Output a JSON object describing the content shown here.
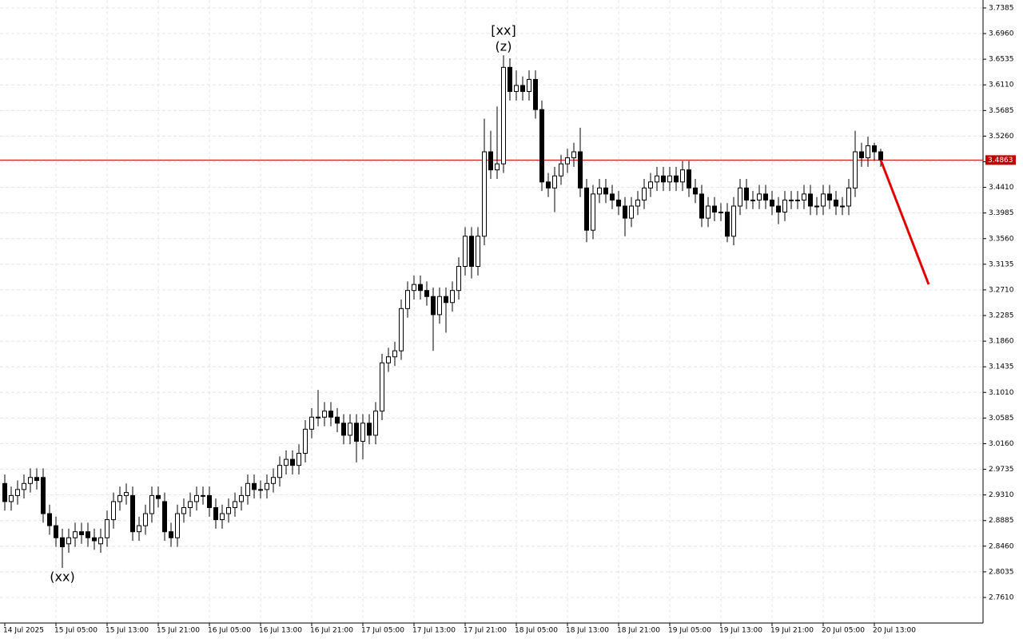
{
  "chart_data": {
    "type": "candlestick",
    "categories": [
      "14 Jul 2025",
      null,
      null,
      null,
      null,
      null,
      null,
      null,
      "15 Jul 05:00",
      null,
      null,
      null,
      null,
      null,
      null,
      null,
      "15 Jul 13:00",
      null,
      null,
      null,
      null,
      null,
      null,
      null,
      "15 Jul 21:00",
      null,
      null,
      null,
      null,
      null,
      null,
      null,
      "16 Jul 05:00",
      null,
      null,
      null,
      null,
      null,
      null,
      null,
      "16 Jul 13:00",
      null,
      null,
      null,
      null,
      null,
      null,
      null,
      "16 Jul 21:00",
      null,
      null,
      null,
      null,
      null,
      null,
      null,
      "17 Jul 05:00",
      null,
      null,
      null,
      null,
      null,
      null,
      null,
      "17 Jul 13:00",
      null,
      null,
      null,
      null,
      null,
      null,
      null,
      "17 Jul 21:00",
      null,
      null,
      null,
      null,
      null,
      null,
      null,
      "18 Jul 05:00",
      null,
      null,
      null,
      null,
      null,
      null,
      null,
      "18 Jul 13:00",
      null,
      null,
      null,
      null,
      null,
      null,
      null,
      "18 Jul 21:00",
      null,
      null,
      null,
      null,
      null,
      null,
      null,
      "19 Jul 05:00",
      null,
      null,
      null,
      null,
      null,
      null,
      null,
      "19 Jul 13:00",
      null,
      null,
      null,
      null,
      null,
      null,
      null,
      "19 Jul 21:00",
      null,
      null,
      null,
      null,
      null,
      null,
      null,
      "20 Jul 05:00",
      null,
      null,
      null,
      null,
      null,
      null,
      null,
      "20 Jul 13:00",
      null
    ],
    "open": [
      2.95,
      2.92,
      2.93,
      2.94,
      2.95,
      2.96,
      2.96,
      2.9,
      2.88,
      2.86,
      2.85,
      2.86,
      2.87,
      2.87,
      2.86,
      2.85,
      2.86,
      2.89,
      2.92,
      2.93,
      2.93,
      2.87,
      2.88,
      2.9,
      2.93,
      2.92,
      2.87,
      2.86,
      2.9,
      2.91,
      2.92,
      2.93,
      2.93,
      2.91,
      2.89,
      2.9,
      2.91,
      2.92,
      2.93,
      2.95,
      2.94,
      2.94,
      2.95,
      2.96,
      2.98,
      2.99,
      2.98,
      3.0,
      3.04,
      3.06,
      3.06,
      3.07,
      3.06,
      3.05,
      3.03,
      3.05,
      3.02,
      3.05,
      3.03,
      3.07,
      3.15,
      3.16,
      3.17,
      3.24,
      3.27,
      3.28,
      3.27,
      3.26,
      3.23,
      3.26,
      3.25,
      3.27,
      3.31,
      3.36,
      3.31,
      3.36,
      3.5,
      3.47,
      3.48,
      3.64,
      3.6,
      3.61,
      3.6,
      3.62,
      3.57,
      3.45,
      3.44,
      3.46,
      3.48,
      3.49,
      3.5,
      3.44,
      3.37,
      3.43,
      3.44,
      3.43,
      3.42,
      3.41,
      3.39,
      3.41,
      3.42,
      3.44,
      3.45,
      3.46,
      3.45,
      3.46,
      3.45,
      3.47,
      3.44,
      3.43,
      3.39,
      3.41,
      3.4,
      3.4,
      3.36,
      3.41,
      3.44,
      3.42,
      3.42,
      3.43,
      3.42,
      3.41,
      3.4,
      3.42,
      3.42,
      3.42,
      3.43,
      3.41,
      3.41,
      3.43,
      3.42,
      3.41,
      3.41,
      3.44,
      3.5,
      3.49,
      3.51,
      3.5
    ],
    "high": [
      2.965,
      2.945,
      2.955,
      2.965,
      2.975,
      2.975,
      2.975,
      2.915,
      2.895,
      2.875,
      2.875,
      2.885,
      2.885,
      2.885,
      2.875,
      2.875,
      2.905,
      2.935,
      2.945,
      2.95,
      2.945,
      2.895,
      2.915,
      2.945,
      2.945,
      2.935,
      2.885,
      2.915,
      2.925,
      2.935,
      2.945,
      2.945,
      2.945,
      2.925,
      2.915,
      2.925,
      2.935,
      2.945,
      2.965,
      2.965,
      2.955,
      2.965,
      2.975,
      2.995,
      3.005,
      3.005,
      3.015,
      3.055,
      3.075,
      3.105,
      3.085,
      3.085,
      3.075,
      3.065,
      3.065,
      3.065,
      3.065,
      3.065,
      3.085,
      3.165,
      3.175,
      3.185,
      3.255,
      3.285,
      3.295,
      3.295,
      3.285,
      3.275,
      3.275,
      3.275,
      3.285,
      3.325,
      3.375,
      3.375,
      3.375,
      3.555,
      3.535,
      3.575,
      3.66,
      3.655,
      3.635,
      3.625,
      3.635,
      3.635,
      3.585,
      3.465,
      3.475,
      3.495,
      3.505,
      3.515,
      3.54,
      3.455,
      3.445,
      3.455,
      3.455,
      3.445,
      3.435,
      3.425,
      3.425,
      3.435,
      3.455,
      3.465,
      3.475,
      3.475,
      3.475,
      3.475,
      3.485,
      3.485,
      3.455,
      3.445,
      3.425,
      3.425,
      3.415,
      3.415,
      3.425,
      3.455,
      3.455,
      3.435,
      3.445,
      3.445,
      3.435,
      3.425,
      3.435,
      3.435,
      3.435,
      3.445,
      3.445,
      3.425,
      3.445,
      3.445,
      3.435,
      3.425,
      3.455,
      3.535,
      3.515,
      3.525,
      3.515,
      3.505
    ],
    "low": [
      2.905,
      2.905,
      2.915,
      2.925,
      2.935,
      2.94,
      2.885,
      2.865,
      2.845,
      2.81,
      2.835,
      2.845,
      2.85,
      2.845,
      2.84,
      2.835,
      2.845,
      2.875,
      2.905,
      2.915,
      2.855,
      2.855,
      2.865,
      2.885,
      2.91,
      2.855,
      2.845,
      2.845,
      2.885,
      2.895,
      2.905,
      2.915,
      2.895,
      2.875,
      2.875,
      2.885,
      2.895,
      2.905,
      2.915,
      2.925,
      2.925,
      2.925,
      2.935,
      2.945,
      2.965,
      2.965,
      2.965,
      2.985,
      3.025,
      3.045,
      3.045,
      3.045,
      3.035,
      3.015,
      3.015,
      2.985,
      2.99,
      3.015,
      3.015,
      3.055,
      3.135,
      3.145,
      3.155,
      3.225,
      3.255,
      3.255,
      3.245,
      3.17,
      3.215,
      3.2,
      3.235,
      3.255,
      3.295,
      3.29,
      3.295,
      3.345,
      3.455,
      3.455,
      3.465,
      3.585,
      3.585,
      3.585,
      3.585,
      3.555,
      3.435,
      3.425,
      3.4,
      3.445,
      3.465,
      3.475,
      3.425,
      3.35,
      3.355,
      3.415,
      3.415,
      3.405,
      3.395,
      3.36,
      3.375,
      3.395,
      3.405,
      3.425,
      3.435,
      3.435,
      3.435,
      3.435,
      3.435,
      3.425,
      3.415,
      3.375,
      3.375,
      3.385,
      3.385,
      3.35,
      3.345,
      3.395,
      3.405,
      3.405,
      3.405,
      3.405,
      3.395,
      3.38,
      3.385,
      3.405,
      3.405,
      3.405,
      3.395,
      3.395,
      3.395,
      3.405,
      3.395,
      3.395,
      3.395,
      3.425,
      3.475,
      3.475,
      3.485,
      3.475
    ],
    "close": [
      2.92,
      2.93,
      2.94,
      2.95,
      2.96,
      2.955,
      2.9,
      2.88,
      2.86,
      2.845,
      2.86,
      2.87,
      2.865,
      2.86,
      2.855,
      2.86,
      2.89,
      2.92,
      2.93,
      2.935,
      2.87,
      2.88,
      2.9,
      2.93,
      2.925,
      2.87,
      2.86,
      2.9,
      2.91,
      2.92,
      2.93,
      2.93,
      2.91,
      2.89,
      2.9,
      2.91,
      2.92,
      2.93,
      2.95,
      2.94,
      2.94,
      2.95,
      2.96,
      2.98,
      2.99,
      2.98,
      3.0,
      3.04,
      3.06,
      3.06,
      3.07,
      3.06,
      3.05,
      3.03,
      3.05,
      3.02,
      3.05,
      3.03,
      3.07,
      3.15,
      3.16,
      3.17,
      3.24,
      3.27,
      3.28,
      3.27,
      3.26,
      3.23,
      3.26,
      3.25,
      3.27,
      3.31,
      3.36,
      3.31,
      3.36,
      3.5,
      3.47,
      3.48,
      3.64,
      3.6,
      3.61,
      3.6,
      3.62,
      3.57,
      3.45,
      3.44,
      3.46,
      3.48,
      3.49,
      3.5,
      3.44,
      3.37,
      3.43,
      3.44,
      3.43,
      3.42,
      3.41,
      3.39,
      3.41,
      3.42,
      3.44,
      3.45,
      3.46,
      3.45,
      3.46,
      3.45,
      3.47,
      3.44,
      3.43,
      3.39,
      3.41,
      3.4,
      3.4,
      3.36,
      3.41,
      3.44,
      3.42,
      3.42,
      3.43,
      3.42,
      3.41,
      3.4,
      3.42,
      3.42,
      3.42,
      3.43,
      3.41,
      3.41,
      3.43,
      3.42,
      3.41,
      3.41,
      3.44,
      3.5,
      3.49,
      3.51,
      3.5,
      3.4863
    ],
    "up_color": "#ffffff",
    "down_color": "#000000",
    "outline_color": "#000000",
    "ylim": [
      2.7186,
      3.7517
    ],
    "yticks": [
      3.7385,
      {
        "value": 3.696,
        "label": "3.6960"
      },
      3.6535,
      {
        "value": 3.611,
        "label": "3.6110"
      },
      3.5685,
      {
        "value": 3.526,
        "label": "3.5260"
      },
      3.4835,
      {
        "value": 3.441,
        "label": "3.4410"
      },
      3.3985,
      {
        "value": 3.356,
        "label": "3.3560"
      },
      3.3135,
      {
        "value": 3.271,
        "label": "3.2710"
      },
      3.2285,
      {
        "value": 3.186,
        "label": "3.1860"
      },
      3.1435,
      {
        "value": 3.101,
        "label": "3.1010"
      },
      3.0585,
      {
        "value": 3.016,
        "label": "3.0160"
      },
      2.9735,
      {
        "value": 2.931,
        "label": "2.9310"
      },
      2.8885,
      {
        "value": 2.846,
        "label": "2.8460"
      },
      2.8035,
      {
        "value": 2.761,
        "label": "2.7610"
      }
    ],
    "grid": true,
    "last_price": 3.4863,
    "last_price_color": "#c00000",
    "forecast": {
      "x": [
        137,
        144.5
      ],
      "values": [
        3.4863,
        3.28
      ],
      "color": "#e00000"
    },
    "annotations": [
      {
        "text": "[xx]",
        "color": "#32cd32",
        "candle": 78,
        "at": "high"
      },
      {
        "text": "(z)",
        "color": "#2222cc",
        "candle": 78,
        "at": "high"
      },
      {
        "text": "(xx)",
        "color": "#2222cc",
        "candle": 9,
        "at": "low"
      }
    ]
  }
}
